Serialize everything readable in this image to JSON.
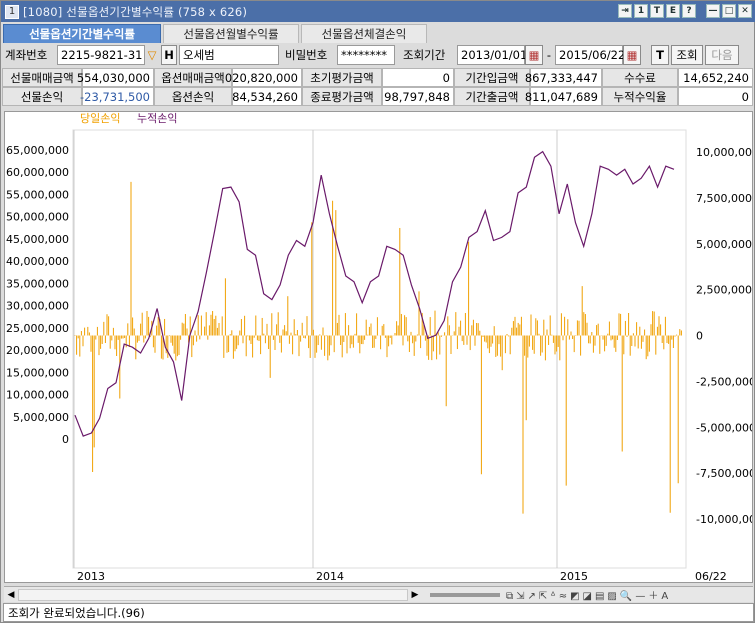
{
  "window": {
    "num": "1",
    "title": "[1080] 선물옵션기간별수익률 (758 x 626)",
    "buttons": [
      "⇥",
      "1",
      "T",
      "E",
      "?",
      "—",
      "□",
      "✕"
    ]
  },
  "tabs": [
    "선물옵션기간별수익률",
    "선물옵션월별수익률",
    "선물옵션체결손익"
  ],
  "form": {
    "account_label": "계좌번호",
    "account_value": "2215-9821-31",
    "h_label": "H",
    "name_value": "오세범",
    "password_label": "비밀번호",
    "password_value": "********",
    "period_label": "조회기간",
    "date_from": "2013/01/01",
    "date_to": "2015/06/22",
    "t_label": "T",
    "search_label": "조회",
    "next_label": "다음"
  },
  "summary": {
    "row1": [
      {
        "h": "선물매매금액",
        "v": "554,030,000"
      },
      {
        "h": "옵션매매금액",
        "v": "020,820,000"
      },
      {
        "h": "초기평가금액",
        "v": "0"
      },
      {
        "h": "기간입금액",
        "v": "867,333,447"
      },
      {
        "h": "수수료",
        "v": "14,652,240"
      }
    ],
    "row2": [
      {
        "h": "선물손익",
        "v": "-23,731,500"
      },
      {
        "h": "옵션손익",
        "v": "84,534,260"
      },
      {
        "h": "종료평가금액",
        "v": "98,797,848"
      },
      {
        "h": "기간출금액",
        "v": "811,047,689"
      },
      {
        "h": "누적수익율",
        "v": "0"
      }
    ]
  },
  "chart_data": {
    "type": "line",
    "series": [
      {
        "name": "당일손익",
        "color": "#f0a000"
      },
      {
        "name": "누적손익",
        "color": "#6a1a6a"
      }
    ],
    "y_left_ticks": [
      "65,000,000",
      "60,000,000",
      "55,000,000",
      "50,000,000",
      "45,000,000",
      "40,000,000",
      "35,000,000",
      "30,000,000",
      "25,000,000",
      "20,000,000",
      "15,000,000",
      "10,000,000",
      "5,000,000",
      "0"
    ],
    "y_right_ticks": [
      "10,000,000",
      "7,500,000",
      "5,000,000",
      "2,500,000",
      "0",
      "-2,500,000",
      "-5,000,000",
      "-7,500,000",
      "-10,000,000"
    ],
    "x_ticks": [
      "2013",
      "2014",
      "2015",
      "06/22"
    ],
    "cumulative_approx": [
      4,
      2,
      0,
      6,
      10,
      14,
      20,
      22,
      18,
      24,
      28,
      22,
      16,
      10,
      22,
      30,
      36,
      48,
      55,
      58,
      52,
      44,
      40,
      34,
      30,
      36,
      40,
      46,
      42,
      50,
      58,
      52,
      42,
      38,
      34,
      32,
      34,
      38,
      42,
      44,
      40,
      36,
      28,
      24,
      22,
      28,
      34,
      40,
      44,
      48,
      50,
      46,
      44,
      48,
      54,
      58,
      62,
      66,
      60,
      52,
      56,
      50,
      42,
      52,
      60,
      62,
      58,
      62,
      56,
      60,
      60,
      58,
      60,
      62
    ]
  },
  "status": "조회가 완료되었습니다.(96)"
}
